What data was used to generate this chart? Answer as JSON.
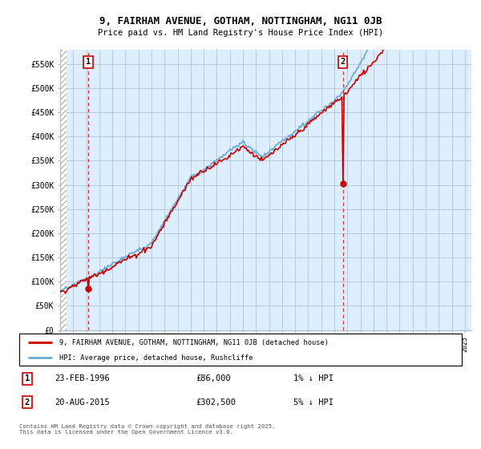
{
  "title_line1": "9, FAIRHAM AVENUE, GOTHAM, NOTTINGHAM, NG11 0JB",
  "title_line2": "Price paid vs. HM Land Registry's House Price Index (HPI)",
  "ylim": [
    0,
    580000
  ],
  "yticks": [
    0,
    50000,
    100000,
    150000,
    200000,
    250000,
    300000,
    350000,
    400000,
    450000,
    500000,
    550000
  ],
  "ytick_labels": [
    "£0",
    "£50K",
    "£100K",
    "£150K",
    "£200K",
    "£250K",
    "£300K",
    "£350K",
    "£400K",
    "£450K",
    "£500K",
    "£550K"
  ],
  "hpi_color": "#6aaed6",
  "price_color": "#cc0000",
  "marker1_date": 1996.15,
  "marker1_value": 86000,
  "marker2_date": 2015.65,
  "marker2_value": 302500,
  "legend_label1": "9, FAIRHAM AVENUE, GOTHAM, NOTTINGHAM, NG11 0JB (detached house)",
  "legend_label2": "HPI: Average price, detached house, Rushcliffe",
  "transaction1": "23-FEB-1996",
  "transaction1_price": "£86,000",
  "transaction1_hpi": "1% ↓ HPI",
  "transaction2": "20-AUG-2015",
  "transaction2_price": "£302,500",
  "transaction2_hpi": "5% ↓ HPI",
  "copyright_text": "Contains HM Land Registry data © Crown copyright and database right 2025.\nThis data is licensed under the Open Government Licence v3.0.",
  "background_color": "#ffffff",
  "chart_bg_color": "#ddeeff",
  "grid_color": "#aabbcc"
}
